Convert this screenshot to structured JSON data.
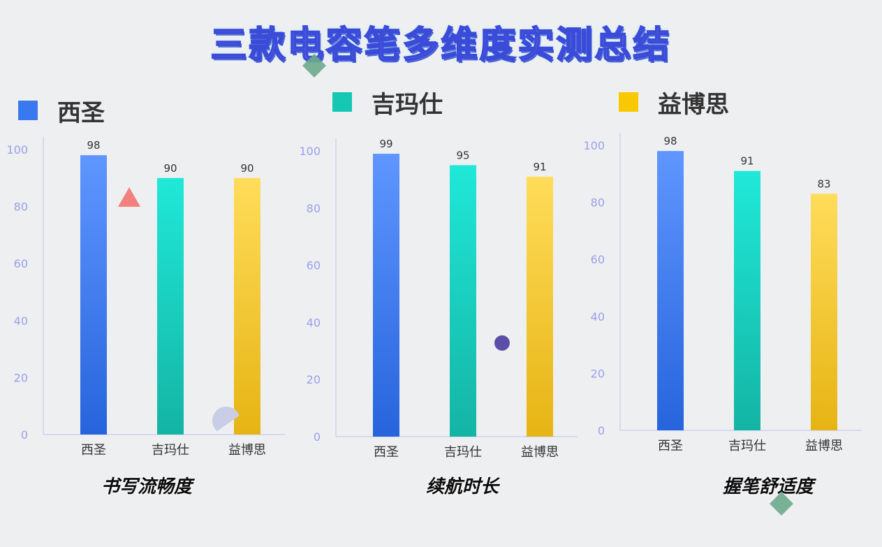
{
  "title": "三款电容笔多维度实测总结",
  "legend": [
    {
      "label": "西圣",
      "color": "#3a78f0"
    },
    {
      "label": "吉玛仕",
      "color": "#14c8b4"
    },
    {
      "label": "益博思",
      "color": "#f8c800"
    }
  ],
  "colors": {
    "axis_tick": "#9aa0e8",
    "axis_line": "#c8ccf0",
    "xsieng_top": "#5f96ff",
    "xsieng_bottom": "#2764dc",
    "jimashi_top": "#20e8d8",
    "jimashi_bottom": "#14b4a4",
    "yiboshi_top": "#ffdc5a",
    "yiboshi_bottom": "#e6b414"
  },
  "chart_data": [
    {
      "type": "bar",
      "title": "书写流畅度",
      "categories": [
        "西圣",
        "吉玛仕",
        "益博思"
      ],
      "values": [
        98,
        90,
        90
      ],
      "yticks": [
        0,
        20,
        40,
        60,
        80,
        100
      ],
      "ylim": [
        0,
        100
      ],
      "xlabel": "",
      "ylabel": "",
      "grid": false
    },
    {
      "type": "bar",
      "title": "续航时长",
      "categories": [
        "西圣",
        "吉玛仕",
        "益博思"
      ],
      "values": [
        99,
        95,
        91
      ],
      "yticks": [
        0,
        20,
        40,
        60,
        80,
        100
      ],
      "ylim": [
        0,
        100
      ],
      "xlabel": "",
      "ylabel": "",
      "grid": false
    },
    {
      "type": "bar",
      "title": "握笔舒适度",
      "categories": [
        "西圣",
        "吉玛仕",
        "益博思"
      ],
      "values": [
        98,
        91,
        83
      ],
      "yticks": [
        0,
        20,
        40,
        60,
        80,
        100
      ],
      "ylim": [
        0,
        100
      ],
      "xlabel": "",
      "ylabel": "",
      "grid": false
    }
  ]
}
